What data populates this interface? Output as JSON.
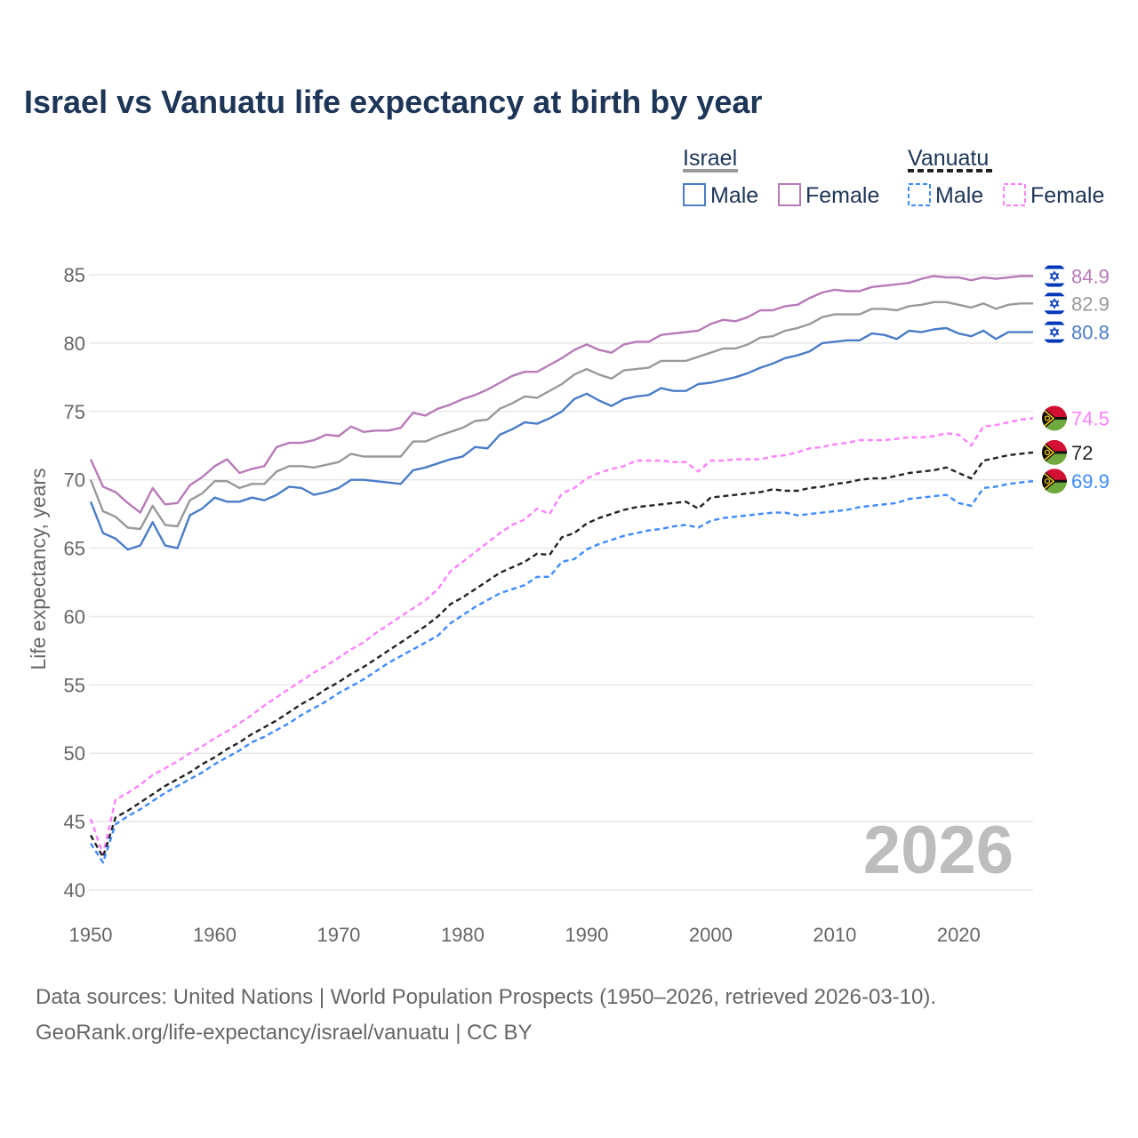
{
  "title": "Israel vs Vanuatu life expectancy at birth by year",
  "footer": {
    "line1": "Data sources: United Nations | World Population Prospects (1950–2026, retrieved 2026-03-10).",
    "line2": "GeoRank.org/life-expectancy/israel/vanuatu | CC BY"
  },
  "chart_data": {
    "type": "line",
    "title": "Israel vs Vanuatu life expectancy at birth by year",
    "xlabel": "",
    "ylabel": "Life expectancy, years",
    "xlim": [
      1950,
      2026
    ],
    "ylim": [
      40,
      85
    ],
    "x_ticks": [
      "1950",
      "1960",
      "1970",
      "1980",
      "1990",
      "2000",
      "2010",
      "2020"
    ],
    "y_ticks": [
      "40",
      "45",
      "50",
      "55",
      "60",
      "65",
      "70",
      "75",
      "80",
      "85"
    ],
    "grid": true,
    "year_watermark": "2026",
    "legend": {
      "placement": "top-right",
      "groups": [
        {
          "name": "Israel",
          "items": [
            "Male",
            "Female"
          ]
        },
        {
          "name": "Vanuatu",
          "items": [
            "Male",
            "Female"
          ]
        }
      ]
    },
    "x_start": 1950,
    "series": [
      {
        "name": "Israel Female",
        "color": "#b77ab8",
        "dashed": false,
        "flag": "israel-flag",
        "end_label": "84.9",
        "values": [
          71.5,
          69.5,
          69.1,
          68.3,
          67.6,
          69.4,
          68.2,
          68.3,
          69.6,
          70.2,
          71.0,
          71.5,
          70.5,
          70.8,
          71.0,
          72.4,
          72.7,
          72.7,
          72.9,
          73.3,
          73.2,
          73.9,
          73.5,
          73.6,
          73.6,
          73.8,
          74.9,
          74.7,
          75.2,
          75.5,
          75.9,
          76.2,
          76.6,
          77.1,
          77.6,
          77.9,
          77.9,
          78.4,
          78.9,
          79.5,
          79.9,
          79.5,
          79.3,
          79.9,
          80.1,
          80.1,
          80.6,
          80.7,
          80.8,
          80.9,
          81.4,
          81.7,
          81.6,
          81.9,
          82.4,
          82.4,
          82.7,
          82.8,
          83.3,
          83.7,
          83.9,
          83.8,
          83.8,
          84.1,
          84.2,
          84.3,
          84.4,
          84.7,
          84.9,
          84.8,
          84.8,
          84.6,
          84.8,
          84.7,
          84.8,
          84.9,
          84.9
        ]
      },
      {
        "name": "Israel",
        "color": "#999999",
        "dashed": false,
        "flag": "israel-flag",
        "end_label": "82.9",
        "values": [
          70.0,
          67.7,
          67.3,
          66.5,
          66.4,
          68.1,
          66.7,
          66.6,
          68.5,
          69.0,
          69.9,
          69.9,
          69.4,
          69.7,
          69.7,
          70.6,
          71.0,
          71.0,
          70.9,
          71.1,
          71.3,
          71.9,
          71.7,
          71.7,
          71.7,
          71.7,
          72.8,
          72.8,
          73.2,
          73.5,
          73.8,
          74.3,
          74.4,
          75.2,
          75.6,
          76.1,
          76.0,
          76.5,
          77.0,
          77.7,
          78.1,
          77.7,
          77.4,
          78.0,
          78.1,
          78.2,
          78.7,
          78.7,
          78.7,
          79.0,
          79.3,
          79.6,
          79.6,
          79.9,
          80.4,
          80.5,
          80.9,
          81.1,
          81.4,
          81.9,
          82.1,
          82.1,
          82.1,
          82.5,
          82.5,
          82.4,
          82.7,
          82.8,
          83.0,
          83.0,
          82.8,
          82.6,
          82.9,
          82.5,
          82.8,
          82.9,
          82.9
        ]
      },
      {
        "name": "Israel Male",
        "color": "#4a7cc7",
        "dashed": false,
        "flag": "israel-flag",
        "end_label": "80.8",
        "values": [
          68.4,
          66.1,
          65.7,
          64.9,
          65.2,
          66.9,
          65.2,
          65.0,
          67.4,
          67.9,
          68.7,
          68.4,
          68.4,
          68.7,
          68.5,
          68.9,
          69.5,
          69.4,
          68.9,
          69.1,
          69.4,
          70.0,
          70.0,
          69.9,
          69.8,
          69.7,
          70.7,
          70.9,
          71.2,
          71.5,
          71.7,
          72.4,
          72.3,
          73.3,
          73.7,
          74.2,
          74.1,
          74.5,
          75.0,
          75.9,
          76.3,
          75.8,
          75.4,
          75.9,
          76.1,
          76.2,
          76.7,
          76.5,
          76.5,
          77.0,
          77.1,
          77.3,
          77.5,
          77.8,
          78.2,
          78.5,
          78.9,
          79.1,
          79.4,
          80.0,
          80.1,
          80.2,
          80.2,
          80.7,
          80.6,
          80.3,
          80.9,
          80.8,
          81.0,
          81.1,
          80.7,
          80.5,
          80.9,
          80.3,
          80.8,
          80.8,
          80.8
        ]
      },
      {
        "name": "Vanuatu Female",
        "color": "#ff80ff",
        "dashed": true,
        "flag": "vanuatu-flag",
        "end_label": "74.5",
        "values": [
          45.2,
          42.6,
          46.6,
          47.1,
          47.7,
          48.4,
          48.9,
          49.4,
          50.0,
          50.5,
          51.1,
          51.6,
          52.2,
          52.8,
          53.5,
          54.1,
          54.7,
          55.3,
          55.9,
          56.4,
          57.0,
          57.6,
          58.1,
          58.8,
          59.4,
          60.0,
          60.6,
          61.2,
          62.0,
          63.3,
          64.0,
          64.7,
          65.4,
          66.1,
          66.7,
          67.1,
          67.9,
          67.5,
          69.0,
          69.4,
          70.1,
          70.5,
          70.8,
          71.0,
          71.4,
          71.4,
          71.4,
          71.3,
          71.3,
          70.6,
          71.4,
          71.4,
          71.5,
          71.5,
          71.5,
          71.7,
          71.8,
          72.0,
          72.3,
          72.4,
          72.6,
          72.7,
          72.9,
          72.9,
          72.9,
          73.0,
          73.1,
          73.1,
          73.2,
          73.4,
          73.3,
          72.5,
          73.9,
          74.0,
          74.2,
          74.4,
          74.5
        ]
      },
      {
        "name": "Vanuatu",
        "color": "#222222",
        "dashed": true,
        "flag": "vanuatu-flag",
        "end_label": "72",
        "values": [
          44.0,
          42.4,
          45.3,
          45.8,
          46.4,
          47.0,
          47.6,
          48.1,
          48.6,
          49.2,
          49.7,
          50.3,
          50.8,
          51.4,
          51.9,
          52.4,
          53.0,
          53.6,
          54.1,
          54.7,
          55.2,
          55.8,
          56.3,
          56.9,
          57.5,
          58.1,
          58.7,
          59.3,
          60.0,
          60.9,
          61.4,
          62.0,
          62.6,
          63.2,
          63.6,
          64.0,
          64.6,
          64.5,
          65.8,
          66.1,
          66.8,
          67.2,
          67.5,
          67.8,
          68.0,
          68.1,
          68.2,
          68.3,
          68.4,
          67.9,
          68.7,
          68.8,
          68.9,
          69.0,
          69.1,
          69.3,
          69.2,
          69.2,
          69.4,
          69.5,
          69.7,
          69.8,
          70.0,
          70.1,
          70.1,
          70.3,
          70.5,
          70.6,
          70.7,
          70.9,
          70.5,
          70.1,
          71.4,
          71.6,
          71.8,
          71.9,
          72.0
        ]
      },
      {
        "name": "Vanuatu Male",
        "color": "#3d8bfd",
        "dashed": true,
        "flag": "vanuatu-flag",
        "end_label": "69.9",
        "values": [
          43.4,
          42.0,
          44.8,
          45.4,
          45.9,
          46.5,
          47.1,
          47.6,
          48.1,
          48.6,
          49.2,
          49.7,
          50.2,
          50.8,
          51.2,
          51.7,
          52.2,
          52.8,
          53.3,
          53.8,
          54.4,
          54.9,
          55.4,
          56.0,
          56.6,
          57.1,
          57.6,
          58.1,
          58.6,
          59.5,
          60.1,
          60.7,
          61.2,
          61.7,
          62.0,
          62.3,
          62.9,
          62.9,
          64.0,
          64.2,
          64.9,
          65.3,
          65.6,
          65.9,
          66.1,
          66.3,
          66.4,
          66.6,
          66.7,
          66.5,
          67.0,
          67.2,
          67.3,
          67.4,
          67.5,
          67.6,
          67.6,
          67.4,
          67.5,
          67.6,
          67.7,
          67.8,
          68.0,
          68.1,
          68.2,
          68.3,
          68.6,
          68.7,
          68.8,
          68.9,
          68.3,
          68.1,
          69.4,
          69.5,
          69.7,
          69.8,
          69.9
        ]
      }
    ]
  }
}
